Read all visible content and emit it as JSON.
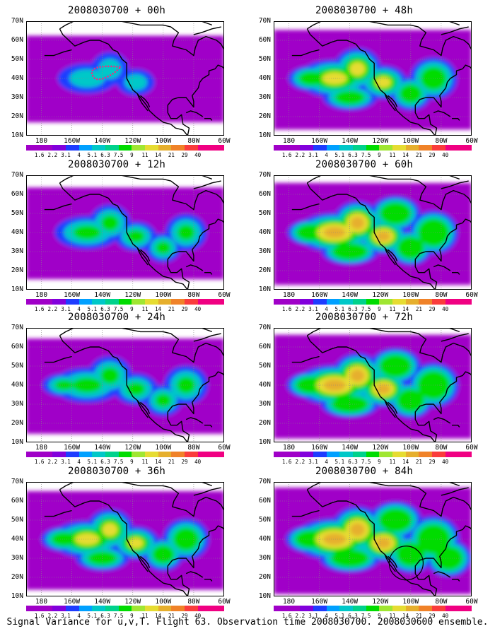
{
  "caption": "Signal Variance for u,v,T. Flight 63. Observation time 2008030700. 2008030600 ensemble.",
  "y_ticks": [
    "70N",
    "60N",
    "50N",
    "40N",
    "30N",
    "20N",
    "10N"
  ],
  "x_ticks": [
    "180",
    "160W",
    "140W",
    "120W",
    "100W",
    "80W",
    "60W"
  ],
  "colorbar": {
    "labels": [
      "1.6",
      "2.2",
      "3.1",
      "4",
      "5.1",
      "6.3",
      "7.5",
      "9",
      "11",
      "14",
      "21",
      "29",
      "40"
    ],
    "colors": [
      "#a000c8",
      "#8200dc",
      "#1e3cff",
      "#00a0ff",
      "#00c8c8",
      "#00d28c",
      "#00dc00",
      "#a0e632",
      "#e6dc32",
      "#e6af2d",
      "#f08228",
      "#fa3c3c",
      "#f00082"
    ]
  },
  "panels": [
    {
      "title": "2008030700 + 00h",
      "level": 0.3,
      "circle": false,
      "track": true
    },
    {
      "title": "2008030700 + 12h",
      "level": 0.45,
      "circle": false,
      "track": false
    },
    {
      "title": "2008030700 + 24h",
      "level": 0.55,
      "circle": false,
      "track": false
    },
    {
      "title": "2008030700 + 36h",
      "level": 0.65,
      "circle": false,
      "track": false
    },
    {
      "title": "2008030700 + 48h",
      "level": 0.68,
      "circle": false,
      "track": false
    },
    {
      "title": "2008030700 + 60h",
      "level": 0.75,
      "circle": false,
      "track": false
    },
    {
      "title": "2008030700 + 72h",
      "level": 0.8,
      "circle": false,
      "track": false
    },
    {
      "title": "2008030700 + 84h",
      "level": 0.88,
      "circle": true,
      "track": false
    }
  ]
}
